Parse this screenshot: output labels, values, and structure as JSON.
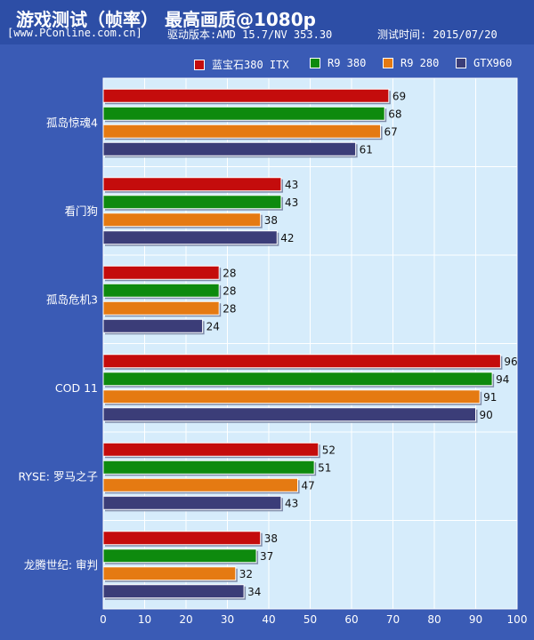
{
  "header": {
    "title": "游戏测试（帧率） 最高画质@1080p",
    "source": "[www.PConline.com.cn]",
    "driver": "驱动版本:AMD 15.7/NV 353.30",
    "date": "测试时间: 2015/07/20"
  },
  "colors": {
    "background": "#3a5bb5",
    "plot_bg": "#d6ecfb",
    "series": [
      "#c40c0c",
      "#0e8a0e",
      "#e57a12",
      "#3b3d78"
    ]
  },
  "chart_data": {
    "type": "bar",
    "orientation": "horizontal",
    "categories": [
      "孤岛惊魂4",
      "看门狗",
      "孤岛危机3",
      "COD 11",
      "RYSE: 罗马之子",
      "龙腾世纪: 审判"
    ],
    "series": [
      {
        "name": "蓝宝石380 ITX",
        "values": [
          69,
          43,
          28,
          96,
          52,
          38
        ]
      },
      {
        "name": "R9 380",
        "values": [
          68,
          43,
          28,
          94,
          51,
          37
        ]
      },
      {
        "name": "R9 280",
        "values": [
          67,
          38,
          28,
          91,
          47,
          32
        ]
      },
      {
        "name": "GTX960",
        "values": [
          61,
          42,
          24,
          90,
          43,
          34
        ]
      }
    ],
    "xlim": [
      0,
      100
    ],
    "xticks": [
      0,
      10,
      20,
      30,
      40,
      50,
      60,
      70,
      80,
      90,
      100
    ],
    "grid": true,
    "legend_position": "top-right",
    "data_labels": true
  }
}
